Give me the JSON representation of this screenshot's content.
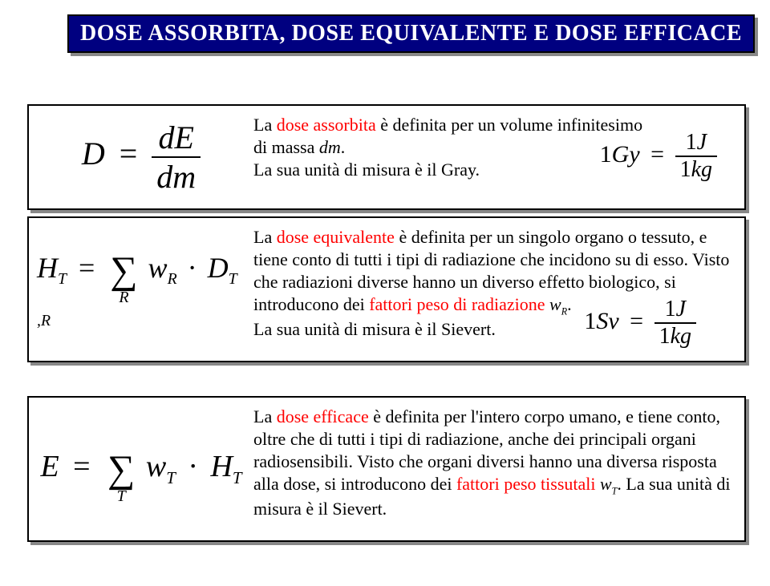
{
  "title": "DOSE ASSORBITA, DOSE EQUIVALENTE E DOSE EFFICACE",
  "row1": {
    "formula": {
      "lhs_var": "D",
      "eq": "=",
      "num": "dE",
      "den": "dm"
    },
    "desc": {
      "line1_a": "La ",
      "line1_red": "dose assorbita",
      "line1_b": " è definita per un volume infinitesimo",
      "line2_a": "di massa ",
      "line2_em": "dm",
      "line2_b": ".",
      "line3": "La sua unità di misura è il Gray."
    },
    "eq": {
      "lhs": "1",
      "lhs_var": "Gy",
      "eq": "=",
      "num_n": "1",
      "num_v": "J",
      "den_n": "1",
      "den_v": "kg"
    }
  },
  "row2": {
    "formula": {
      "lhs_var": "H",
      "lhs_sub": "T",
      "eq": "=",
      "sigma_below": "R",
      "t1_var": "w",
      "t1_sub": "R",
      "dot": "·",
      "t2_var": "D",
      "t2_sub": "T ,R"
    },
    "desc": {
      "a1": "La ",
      "a_red": "dose equivalente",
      "a2": " è definita per un singolo organo o tessuto, e tiene conto di tutti i tipi di radiazione che incidono su di esso. Visto che radiazioni diverse hanno un diverso effetto biologico, si introducono dei ",
      "b_red": "fattori peso di radiazione",
      "c1": " ",
      "c_em": "w",
      "c_sub": "R",
      "c2": ".",
      "d": "La sua unità di misura è il Sievert."
    },
    "eq": {
      "lhs": "1",
      "lhs_var": "Sv",
      "eq": "=",
      "num_n": "1",
      "num_v": "J",
      "den_n": "1",
      "den_v": "kg"
    }
  },
  "row3": {
    "formula": {
      "lhs_var": "E",
      "eq": "=",
      "sigma_below": "T",
      "t1_var": "w",
      "t1_sub": "T",
      "dot": "·",
      "t2_var": "H",
      "t2_sub": "T"
    },
    "desc": {
      "a1": "La ",
      "a_red": "dose efficace",
      "a2": " è definita per l'intero corpo umano, e tiene conto, oltre che di tutti i tipi di radiazione, anche dei principali organi radiosensibili. Visto che organi diversi hanno una diversa risposta alla dose, si introducono dei ",
      "b_red": "fattori peso tissutali",
      "c1": " ",
      "c_em": "w",
      "c_sub": "T",
      "c2": ". La sua unità di misura è il Sievert."
    }
  },
  "colors": {
    "title_bg": "#000080",
    "title_fg": "#ffffff",
    "border": "#000000",
    "shadow": "#888888",
    "red": "#ff0000",
    "text": "#000000",
    "bg": "#ffffff"
  }
}
